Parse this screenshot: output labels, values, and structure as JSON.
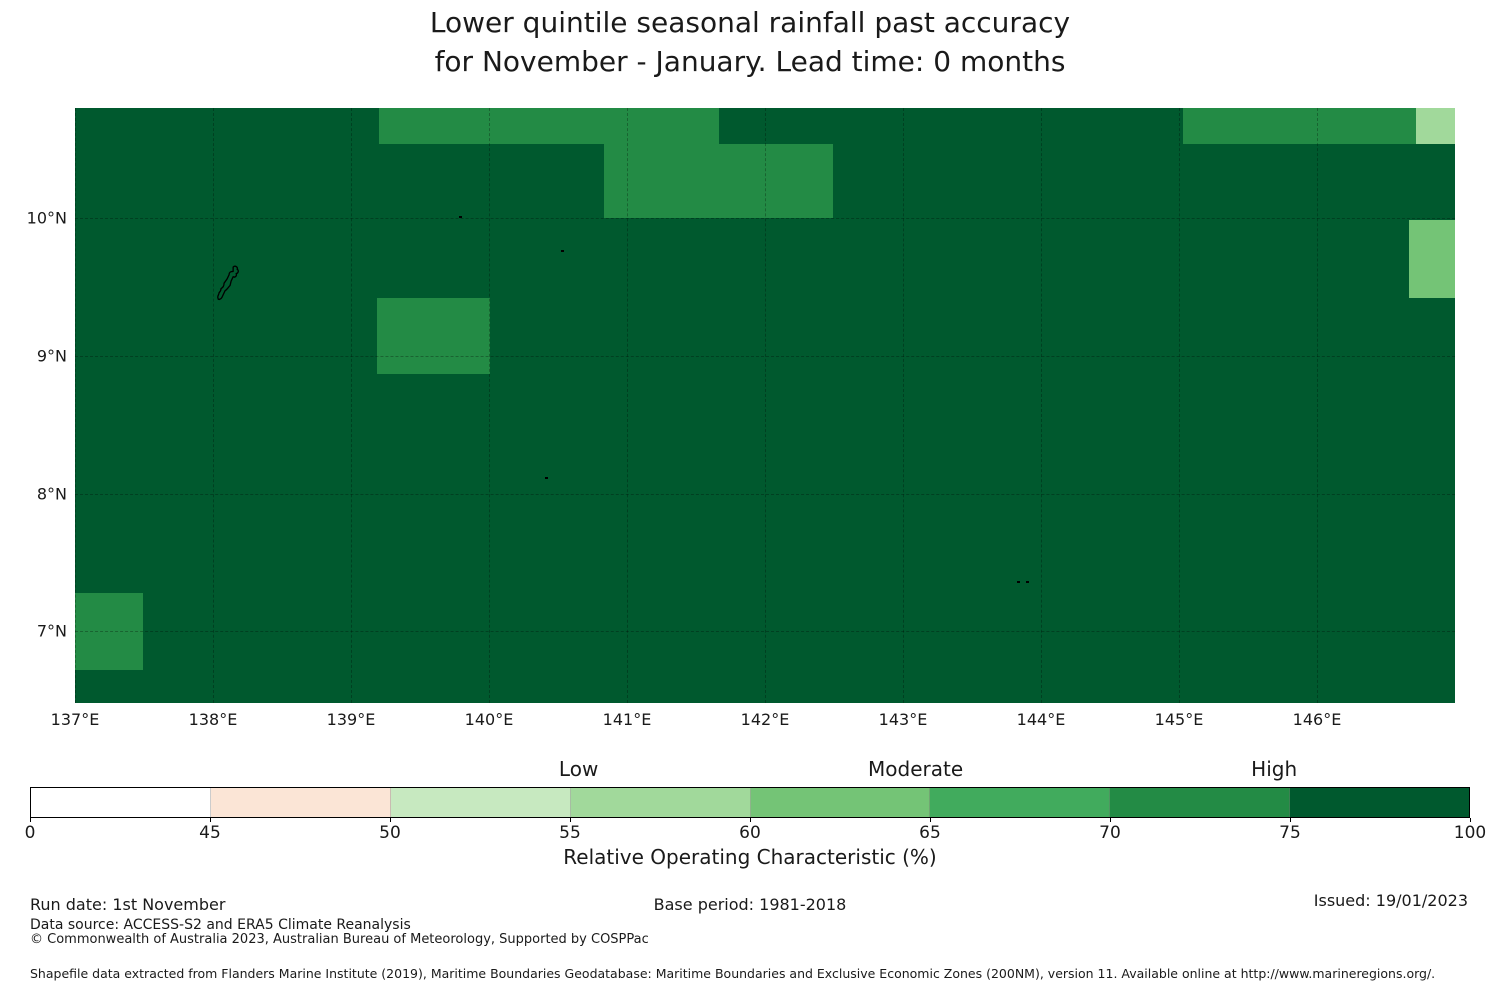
{
  "title": {
    "line1": "Lower quintile seasonal rainfall past accuracy",
    "line2": "for November - January. Lead time: 0 months"
  },
  "footer": {
    "run_date": "Run date: 1st November",
    "base_period": "Base period: 1981-2018",
    "issued": "Issued: 19/01/2023",
    "data_source": "Data source: ACCESS-S2 and ERA5 Climate Reanalysis",
    "copyright": "© Commonwealth of Australia 2023, Australian Bureau of Meteorology, Supported by COSPPac",
    "shapefile_note": "Shapefile data extracted from Flanders Marine Institute (2019), Maritime Boundaries Geodatabase: Maritime Boundaries and Exclusive Economic Zones (200NM), version 11. Available online at http://www.marineregions.org/."
  },
  "chart_data": {
    "type": "heatmap",
    "title": "Lower quintile seasonal rainfall past accuracy for November - January. Lead time: 0 months",
    "geo": {
      "lon_min": 137.0,
      "lon_max": 147.0,
      "lat_min": 6.48,
      "lat_max": 10.8
    },
    "x_axis": {
      "ticks": [
        {
          "label": "137°E",
          "lon": 137
        },
        {
          "label": "138°E",
          "lon": 138
        },
        {
          "label": "139°E",
          "lon": 139
        },
        {
          "label": "140°E",
          "lon": 140
        },
        {
          "label": "141°E",
          "lon": 141
        },
        {
          "label": "142°E",
          "lon": 142
        },
        {
          "label": "143°E",
          "lon": 143
        },
        {
          "label": "144°E",
          "lon": 144
        },
        {
          "label": "145°E",
          "lon": 145
        },
        {
          "label": "146°E",
          "lon": 146
        }
      ]
    },
    "y_axis": {
      "ticks": [
        {
          "label": "10°N",
          "lat": 10
        },
        {
          "label": "9°N",
          "lat": 9
        },
        {
          "label": "8°N",
          "lat": 8
        },
        {
          "label": "7°N",
          "lat": 7
        }
      ]
    },
    "grid": true,
    "background_band": "75-100",
    "regions": [
      {
        "name": "cell-north-west-strip",
        "lon": [
          139.2,
          141.67
        ],
        "lat": [
          10.54,
          10.8
        ],
        "band": "70-75"
      },
      {
        "name": "cell-north-central-block",
        "lon": [
          140.83,
          142.49
        ],
        "lat": [
          10.0,
          10.54
        ],
        "band": "70-75"
      },
      {
        "name": "cell-north-east-strip",
        "lon": [
          145.03,
          146.72
        ],
        "lat": [
          10.54,
          10.8
        ],
        "band": "70-75"
      },
      {
        "name": "cell-north-east-corner",
        "lon": [
          146.72,
          147.0
        ],
        "lat": [
          10.54,
          10.8
        ],
        "band": "55-60"
      },
      {
        "name": "cell-east-edge",
        "lon": [
          146.67,
          147.0
        ],
        "lat": [
          9.42,
          9.99
        ],
        "band": "60-65"
      },
      {
        "name": "cell-west-9n-block",
        "lon": [
          139.19,
          140.01
        ],
        "lat": [
          8.87,
          9.42
        ],
        "band": "70-75"
      },
      {
        "name": "cell-south-west-corner",
        "lon": [
          137.0,
          137.49
        ],
        "lat": [
          6.72,
          7.28
        ],
        "band": "70-75"
      }
    ],
    "islands": [
      {
        "name": "palau-main-island",
        "lon": [
          138.03,
          138.22
        ],
        "lat": [
          9.38,
          9.66
        ]
      }
    ],
    "islets": [
      {
        "lon": 139.79,
        "lat": 10.01
      },
      {
        "lon": 140.53,
        "lat": 9.76
      },
      {
        "lon": 140.41,
        "lat": 8.11
      },
      {
        "lon": 143.83,
        "lat": 7.36
      },
      {
        "lon": 143.9,
        "lat": 7.36
      }
    ],
    "colorbar": {
      "axis_label": "Relative Operating Characteristic (%)",
      "boundaries": [
        0,
        45,
        50,
        55,
        60,
        65,
        70,
        75,
        100
      ],
      "bands": [
        "0-45",
        "45-50",
        "50-55",
        "55-60",
        "60-65",
        "65-70",
        "70-75",
        "75-100"
      ],
      "colors": [
        "#ffffff",
        "#fbe5d6",
        "#c7e9c0",
        "#a1d99b",
        "#74c476",
        "#41ab5d",
        "#238b45",
        "#00592e"
      ],
      "tier_labels": [
        {
          "label": "Low",
          "pos": 0.381
        },
        {
          "label": "Moderate",
          "pos": 0.615
        },
        {
          "label": "High",
          "pos": 0.864
        }
      ]
    }
  }
}
